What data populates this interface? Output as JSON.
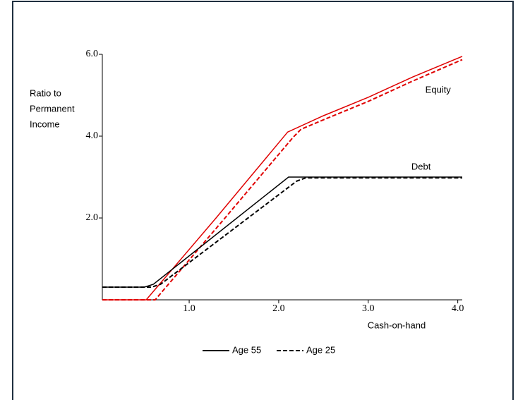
{
  "chart_data": {
    "type": "line",
    "y_label_lines": [
      "Ratio to",
      "Permanent",
      "Income"
    ],
    "x_label": "Cash-on-hand",
    "xlim": [
      0.03,
      4.05
    ],
    "ylim": [
      0,
      6
    ],
    "xticks": [
      {
        "value": 1,
        "label": "1.0"
      },
      {
        "value": 2,
        "label": "2.0"
      },
      {
        "value": 3,
        "label": "3.0"
      },
      {
        "value": 4,
        "label": "4.0"
      }
    ],
    "yticks": [
      {
        "value": 2,
        "label": "2.0"
      },
      {
        "value": 4,
        "label": "4.0"
      },
      {
        "value": 6,
        "label": "6.0"
      }
    ],
    "series": [
      {
        "color": "#e00000",
        "dash": false,
        "x": [
          0.03,
          0.52,
          1.3,
          2.1,
          2.5,
          3.0,
          3.5,
          4.05
        ],
        "values": [
          0,
          0,
          2.0,
          4.1,
          4.5,
          4.95,
          5.45,
          5.95
        ]
      },
      {
        "color": "#e00000",
        "dash": true,
        "x": [
          0.03,
          0.62,
          1.4,
          2.16,
          2.25,
          2.5,
          3.0,
          3.5,
          4.05
        ],
        "values": [
          0,
          0,
          2.0,
          3.97,
          4.17,
          4.4,
          4.85,
          5.35,
          5.87
        ]
      },
      {
        "color": "#000000",
        "dash": false,
        "x": [
          0.03,
          0.5,
          0.6,
          2.11,
          4.05
        ],
        "values": [
          0.31,
          0.31,
          0.38,
          3.0,
          3.0
        ]
      },
      {
        "color": "#000000",
        "dash": true,
        "x": [
          0.03,
          0.58,
          0.68,
          2.2,
          2.3,
          4.05
        ],
        "values": [
          0.31,
          0.31,
          0.38,
          2.9,
          2.98,
          2.98
        ]
      }
    ],
    "annotations": [
      {
        "text": "Equity",
        "x": 3.78,
        "y": 5.12
      },
      {
        "text": "Debt",
        "x": 3.59,
        "y": 3.24
      }
    ],
    "legend": [
      {
        "name": "Age 55",
        "dash": false,
        "color": "#000000"
      },
      {
        "name": "Age 25",
        "dash": true,
        "color": "#000000"
      }
    ]
  }
}
